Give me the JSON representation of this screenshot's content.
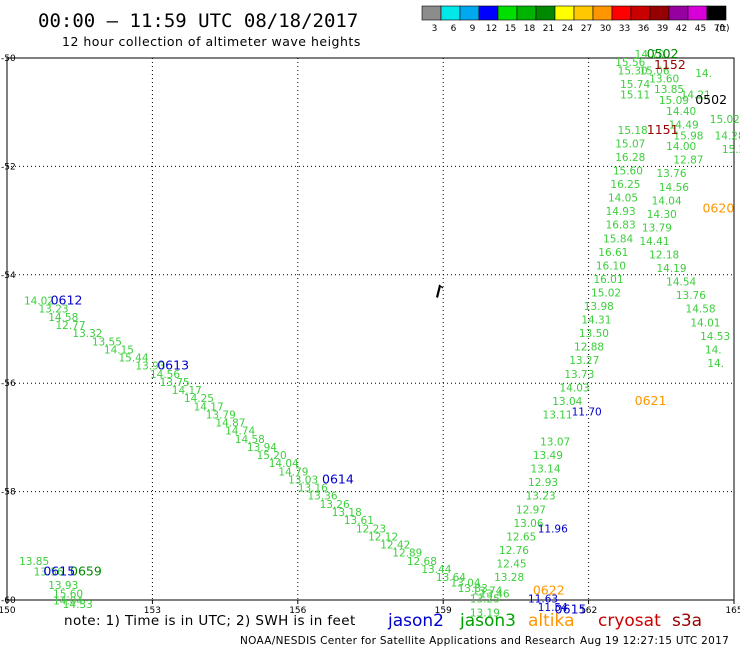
{
  "header": {
    "title": "00:00 – 11:59 UTC 08/18/2017",
    "subtitle": "12 hour collection of altimeter wave heights"
  },
  "footer": {
    "note": "note: 1) Time is in UTC; 2) SWH is in feet",
    "credit": "NOAA/NESDIS Center for Satellite Applications and Research",
    "generated": "Aug 19 12:27:15 UTC 2017"
  },
  "legend": {
    "unit": "(ft)",
    "bins": [
      {
        "label": "3",
        "color": "#8c8c8c"
      },
      {
        "label": "6",
        "color": "#00e8e8"
      },
      {
        "label": "9",
        "color": "#00a8f0"
      },
      {
        "label": "12",
        "color": "#0000ff"
      },
      {
        "label": "15",
        "color": "#00e000"
      },
      {
        "label": "18",
        "color": "#00b400"
      },
      {
        "label": "21",
        "color": "#008800"
      },
      {
        "label": "24",
        "color": "#ffff00"
      },
      {
        "label": "27",
        "color": "#ffc800"
      },
      {
        "label": "30",
        "color": "#ff9600"
      },
      {
        "label": "33",
        "color": "#ff0000"
      },
      {
        "label": "36",
        "color": "#c80000"
      },
      {
        "label": "39",
        "color": "#960000"
      },
      {
        "label": "42",
        "color": "#9600a0"
      },
      {
        "label": "45",
        "color": "#d800d8"
      },
      {
        "label": "70",
        "color": "#000000"
      }
    ]
  },
  "satellites": [
    {
      "name": "jason2",
      "color": "#0000cc"
    },
    {
      "name": "jason3",
      "color": "#00a000"
    },
    {
      "name": "altika",
      "color": "#ff9600"
    },
    {
      "name": "cryosat",
      "color": "#cc0000"
    },
    {
      "name": "s3a",
      "color": "#960000"
    }
  ],
  "chart_data": {
    "type": "scatter",
    "xlabel": "",
    "ylabel": "",
    "xlim": [
      150,
      165
    ],
    "ylim": [
      -60,
      -50
    ],
    "grid": true,
    "x_ticks": [
      "150",
      "153",
      "156",
      "159",
      "162",
      "165"
    ],
    "y_ticks": [
      "-50",
      "-52",
      "-54",
      "-56",
      "-58",
      "-60"
    ],
    "series": [
      {
        "name": "jason3",
        "points": [
          {
            "lon": 150.35,
            "lat": -54.55,
            "label": "14.02"
          },
          {
            "lon": 150.65,
            "lat": -54.7,
            "label": "13.23"
          },
          {
            "lon": 150.85,
            "lat": -54.85,
            "label": "14.58"
          },
          {
            "lon": 151.0,
            "lat": -55.0,
            "label": "12.77"
          },
          {
            "lon": 151.35,
            "lat": -55.15,
            "label": "13.32"
          },
          {
            "lon": 151.75,
            "lat": -55.3,
            "label": "13.55"
          },
          {
            "lon": 152.0,
            "lat": -55.45,
            "label": "14.15"
          },
          {
            "lon": 152.3,
            "lat": -55.6,
            "label": "15.44"
          },
          {
            "lon": 152.65,
            "lat": -55.75,
            "label": "13.93"
          },
          {
            "lon": 152.95,
            "lat": -55.9,
            "label": "14.56"
          },
          {
            "lon": 153.15,
            "lat": -56.05,
            "label": "13.75"
          },
          {
            "lon": 153.4,
            "lat": -56.2,
            "label": "14.17"
          },
          {
            "lon": 153.65,
            "lat": -56.35,
            "label": "14.25"
          },
          {
            "lon": 153.85,
            "lat": -56.5,
            "label": "14.17"
          },
          {
            "lon": 154.1,
            "lat": -56.65,
            "label": "13.79"
          },
          {
            "lon": 154.3,
            "lat": -56.8,
            "label": "14.87"
          },
          {
            "lon": 154.5,
            "lat": -56.95,
            "label": "14.74"
          },
          {
            "lon": 154.7,
            "lat": -57.1,
            "label": "14.58"
          },
          {
            "lon": 154.95,
            "lat": -57.25,
            "label": "13.94"
          },
          {
            "lon": 155.15,
            "lat": -57.4,
            "label": "15.20"
          },
          {
            "lon": 155.4,
            "lat": -57.55,
            "label": "14.04"
          },
          {
            "lon": 155.6,
            "lat": -57.7,
            "label": "14.79"
          },
          {
            "lon": 155.8,
            "lat": -57.85,
            "label": "13.03"
          },
          {
            "lon": 156.0,
            "lat": -58.0,
            "label": "13.16"
          },
          {
            "lon": 156.2,
            "lat": -58.15,
            "label": "13.36"
          },
          {
            "lon": 156.45,
            "lat": -58.3,
            "label": "13.26"
          },
          {
            "lon": 156.7,
            "lat": -58.45,
            "label": "13.18"
          },
          {
            "lon": 156.95,
            "lat": -58.6,
            "label": "13.61"
          },
          {
            "lon": 157.2,
            "lat": -58.75,
            "label": "12.23"
          },
          {
            "lon": 157.45,
            "lat": -58.9,
            "label": "12.12"
          },
          {
            "lon": 157.7,
            "lat": -59.05,
            "label": "12.42"
          },
          {
            "lon": 157.95,
            "lat": -59.2,
            "label": "12.89"
          },
          {
            "lon": 158.25,
            "lat": -59.35,
            "label": "12.68"
          },
          {
            "lon": 158.55,
            "lat": -59.5,
            "label": "13.44"
          },
          {
            "lon": 158.85,
            "lat": -59.65,
            "label": "13.64"
          },
          {
            "lon": 159.15,
            "lat": -59.75,
            "label": "13.04"
          },
          {
            "lon": 159.3,
            "lat": -59.85,
            "label": "13.83"
          },
          {
            "lon": 159.6,
            "lat": -59.9,
            "label": "13.74"
          },
          {
            "lon": 159.75,
            "lat": -59.95,
            "label": "13.46"
          },
          {
            "lon": 159.55,
            "lat": -60.05,
            "label": "13.25"
          },
          {
            "lon": 159.55,
            "lat": -60.3,
            "label": "13.19"
          },
          {
            "lon": 160.05,
            "lat": -59.65,
            "label": "13.28"
          },
          {
            "lon": 160.1,
            "lat": -59.4,
            "label": "12.45"
          },
          {
            "lon": 160.15,
            "lat": -59.15,
            "label": "12.76"
          },
          {
            "lon": 160.3,
            "lat": -58.9,
            "label": "12.65"
          },
          {
            "lon": 160.45,
            "lat": -58.65,
            "label": "13.06"
          },
          {
            "lon": 160.5,
            "lat": -58.4,
            "label": "12.97"
          },
          {
            "lon": 160.7,
            "lat": -58.15,
            "label": "13.23"
          },
          {
            "lon": 160.75,
            "lat": -57.9,
            "label": "12.93"
          },
          {
            "lon": 160.8,
            "lat": -57.65,
            "label": "13.14"
          },
          {
            "lon": 160.85,
            "lat": -57.4,
            "label": "13.49"
          },
          {
            "lon": 161.0,
            "lat": -57.15,
            "label": "13.07"
          },
          {
            "lon": 161.05,
            "lat": -56.65,
            "label": "13.11"
          },
          {
            "lon": 161.25,
            "lat": -56.4,
            "label": "13.04"
          },
          {
            "lon": 161.4,
            "lat": -56.15,
            "label": "14.03"
          },
          {
            "lon": 161.5,
            "lat": -55.9,
            "label": "13.73"
          },
          {
            "lon": 161.6,
            "lat": -55.65,
            "label": "13.27"
          },
          {
            "lon": 161.7,
            "lat": -55.4,
            "label": "12.88"
          },
          {
            "lon": 161.8,
            "lat": -55.15,
            "label": "13.50"
          },
          {
            "lon": 161.85,
            "lat": -54.9,
            "label": "14.31"
          },
          {
            "lon": 161.9,
            "lat": -54.65,
            "label": "13.98"
          },
          {
            "lon": 162.05,
            "lat": -54.4,
            "label": "15.02"
          },
          {
            "lon": 162.1,
            "lat": -54.15,
            "label": "16.01"
          },
          {
            "lon": 162.15,
            "lat": -53.9,
            "label": "16.10"
          },
          {
            "lon": 162.2,
            "lat": -53.65,
            "label": "16.61"
          },
          {
            "lon": 162.3,
            "lat": -53.4,
            "label": "15.84"
          },
          {
            "lon": 162.35,
            "lat": -53.15,
            "label": "16.83"
          },
          {
            "lon": 162.35,
            "lat": -52.9,
            "label": "14.93"
          },
          {
            "lon": 162.4,
            "lat": -52.65,
            "label": "14.05"
          },
          {
            "lon": 162.45,
            "lat": -52.4,
            "label": "16.25"
          },
          {
            "lon": 162.5,
            "lat": -52.15,
            "label": "15.60"
          },
          {
            "lon": 162.55,
            "lat": -51.9,
            "label": "16.28"
          },
          {
            "lon": 162.55,
            "lat": -51.65,
            "label": "15.07"
          },
          {
            "lon": 162.6,
            "lat": -51.4,
            "label": "15.18"
          },
          {
            "lon": 162.65,
            "lat": -50.75,
            "label": "15.11"
          },
          {
            "lon": 162.65,
            "lat": -50.55,
            "label": "15.74"
          },
          {
            "lon": 162.6,
            "lat": -50.3,
            "label": "15.30"
          },
          {
            "lon": 162.55,
            "lat": -50.15,
            "label": "15.56"
          },
          {
            "lon": 162.95,
            "lat": -50.0,
            "label": "14.70"
          },
          {
            "lon": 163.05,
            "lat": -50.3,
            "label": "15.06"
          },
          {
            "lon": 163.25,
            "lat": -50.45,
            "label": "13.60"
          },
          {
            "lon": 163.35,
            "lat": -50.65,
            "label": "13.85"
          },
          {
            "lon": 163.45,
            "lat": -50.85,
            "label": "15.09"
          },
          {
            "lon": 163.6,
            "lat": -51.05,
            "label": "14.40"
          },
          {
            "lon": 163.65,
            "lat": -51.3,
            "label": "14.49"
          },
          {
            "lon": 163.75,
            "lat": -51.5,
            "label": "15.98"
          },
          {
            "lon": 163.6,
            "lat": -51.7,
            "label": "14.00"
          },
          {
            "lon": 163.75,
            "lat": -51.95,
            "label": "12.87"
          },
          {
            "lon": 163.4,
            "lat": -52.2,
            "label": "13.76"
          },
          {
            "lon": 163.45,
            "lat": -52.45,
            "label": "14.56"
          },
          {
            "lon": 163.3,
            "lat": -52.7,
            "label": "14.04"
          },
          {
            "lon": 163.2,
            "lat": -52.95,
            "label": "14.30"
          },
          {
            "lon": 163.1,
            "lat": -53.2,
            "label": "13.79"
          },
          {
            "lon": 163.05,
            "lat": -53.45,
            "label": "14.41"
          },
          {
            "lon": 163.25,
            "lat": -53.7,
            "label": "12.18"
          },
          {
            "lon": 163.4,
            "lat": -53.95,
            "label": "14.19"
          },
          {
            "lon": 163.6,
            "lat": -54.2,
            "label": "14.54"
          },
          {
            "lon": 163.8,
            "lat": -54.45,
            "label": "13.76"
          },
          {
            "lon": 164.0,
            "lat": -54.7,
            "label": "14.58"
          },
          {
            "lon": 164.1,
            "lat": -54.95,
            "label": "14.01"
          },
          {
            "lon": 164.3,
            "lat": -55.2,
            "label": "14.53"
          },
          {
            "lon": 164.4,
            "lat": -55.45,
            "label": "14."
          },
          {
            "lon": 164.45,
            "lat": -55.7,
            "label": "14."
          },
          {
            "lon": 163.9,
            "lat": -50.75,
            "label": "14.21"
          },
          {
            "lon": 164.2,
            "lat": -50.35,
            "label": "14."
          },
          {
            "lon": 164.5,
            "lat": -51.2,
            "label": "15.02"
          },
          {
            "lon": 164.6,
            "lat": -51.5,
            "label": "14.28"
          },
          {
            "lon": 164.75,
            "lat": -51.75,
            "label": "15.2"
          },
          {
            "lon": 150.25,
            "lat": -59.35,
            "label": "13.85"
          },
          {
            "lon": 150.55,
            "lat": -59.55,
            "label": "13.56"
          },
          {
            "lon": 150.85,
            "lat": -59.8,
            "label": "13.93"
          },
          {
            "lon": 150.95,
            "lat": -59.95,
            "label": "15.60"
          },
          {
            "lon": 150.95,
            "lat": -60.08,
            "label": "14.04"
          },
          {
            "lon": 151.15,
            "lat": -60.15,
            "label": "14.33"
          }
        ]
      },
      {
        "name": "time-labels",
        "points": [
          {
            "lon": 150.9,
            "lat": -54.55,
            "label": "0612",
            "color": "#0000cc"
          },
          {
            "lon": 153.1,
            "lat": -55.75,
            "label": "0613",
            "color": "#0000cc"
          },
          {
            "lon": 156.5,
            "lat": -57.85,
            "label": "0614",
            "color": "#0000cc"
          },
          {
            "lon": 161.3,
            "lat": -60.25,
            "label": "0615",
            "color": "#0000cc"
          },
          {
            "lon": 163.2,
            "lat": -50.0,
            "label": "0502",
            "color": "#008800"
          },
          {
            "lon": 163.35,
            "lat": -50.2,
            "label": "1152",
            "color": "#960000"
          },
          {
            "lon": 164.2,
            "lat": -50.85,
            "label": "0502",
            "color": "#000000"
          },
          {
            "lon": 163.2,
            "lat": -51.4,
            "label": "1151",
            "color": "#960000"
          },
          {
            "lon": 164.35,
            "lat": -52.85,
            "label": "0620",
            "color": "#ff9600"
          },
          {
            "lon": 162.95,
            "lat": -56.4,
            "label": "0621",
            "color": "#ff9600"
          },
          {
            "lon": 160.85,
            "lat": -59.9,
            "label": "0622",
            "color": "#ff9600"
          },
          {
            "lon": 151.3,
            "lat": -59.55,
            "label": "0659",
            "color": "#008800"
          },
          {
            "lon": 150.75,
            "lat": -59.55,
            "label": "0615",
            "color": "#0000cc"
          }
        ]
      },
      {
        "name": "jason2",
        "points": [
          {
            "lon": 161.65,
            "lat": -56.6,
            "label": "11.70"
          },
          {
            "lon": 160.95,
            "lat": -58.75,
            "label": "11.96"
          },
          {
            "lon": 160.75,
            "lat": -60.05,
            "label": "11.63"
          },
          {
            "lon": 160.95,
            "lat": -60.2,
            "label": "11.54"
          }
        ]
      }
    ]
  }
}
